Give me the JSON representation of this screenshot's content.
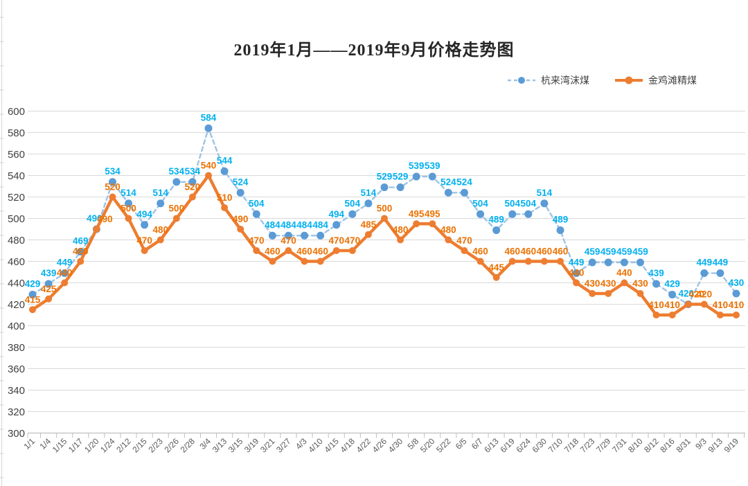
{
  "title": "2019年1月——2019年9月价格走势图",
  "colors": {
    "blue_marker": "#5B9BD5",
    "blue_line": "#9DC3E6",
    "blue_label": "#00B0F0",
    "orange_marker": "#ED7D31",
    "orange_line": "#ED7D31",
    "orange_label": "#ED7100",
    "gridline": "#D9D9D9",
    "axis_line": "#BFBFBF",
    "y_tick_text": "#404040",
    "x_tick_text": "#595959"
  },
  "chart_data": {
    "type": "line",
    "title": "2019年1月——2019年9月价格走势图",
    "grid": true,
    "legend_position": "top-right",
    "data_labels": true,
    "y_axis": {
      "min": 300,
      "max": 600,
      "step": 20
    },
    "categories": [
      "1/1",
      "1/4",
      "1/15",
      "1/17",
      "1/20",
      "1/24",
      "2/12",
      "2/15",
      "2/23",
      "2/26",
      "2/28",
      "3/4",
      "3/13",
      "3/15",
      "3/19",
      "3/21",
      "3/27",
      "4/3",
      "4/10",
      "4/15",
      "4/18",
      "4/22",
      "4/26",
      "4/30",
      "5/8",
      "5/20",
      "5/22",
      "6/5",
      "6/7",
      "6/13",
      "6/19",
      "6/24",
      "6/30",
      "7/10",
      "7/18",
      "7/23",
      "7/29",
      "7/31",
      "8/10",
      "8/12",
      "8/16",
      "8/31",
      "9/3",
      "9/13",
      "9/19"
    ],
    "series": [
      {
        "name": "杭来湾沫煤",
        "style": "dashed",
        "line_color": "#9DC3E6",
        "marker_color": "#5B9BD5",
        "label_color": "#00B0F0",
        "values": [
          429,
          439,
          449,
          469,
          490,
          534,
          514,
          494,
          514,
          534,
          534,
          584,
          544,
          524,
          504,
          484,
          484,
          484,
          484,
          494,
          504,
          514,
          529,
          529,
          539,
          539,
          524,
          524,
          504,
          489,
          504,
          504,
          514,
          489,
          449,
          459,
          459,
          459,
          459,
          439,
          429,
          420,
          449,
          449,
          430
        ]
      },
      {
        "name": "金鸡滩精煤",
        "style": "solid",
        "line_color": "#ED7D31",
        "marker_color": "#ED7D31",
        "label_color": "#ED7100",
        "values": [
          415,
          425,
          440,
          460,
          490,
          520,
          500,
          470,
          480,
          500,
          520,
          540,
          510,
          490,
          470,
          460,
          470,
          460,
          460,
          470,
          470,
          485,
          500,
          480,
          495,
          495,
          480,
          470,
          460,
          445,
          460,
          460,
          460,
          460,
          440,
          430,
          430,
          440,
          430,
          410,
          410,
          420,
          420,
          410,
          410
        ]
      }
    ]
  }
}
